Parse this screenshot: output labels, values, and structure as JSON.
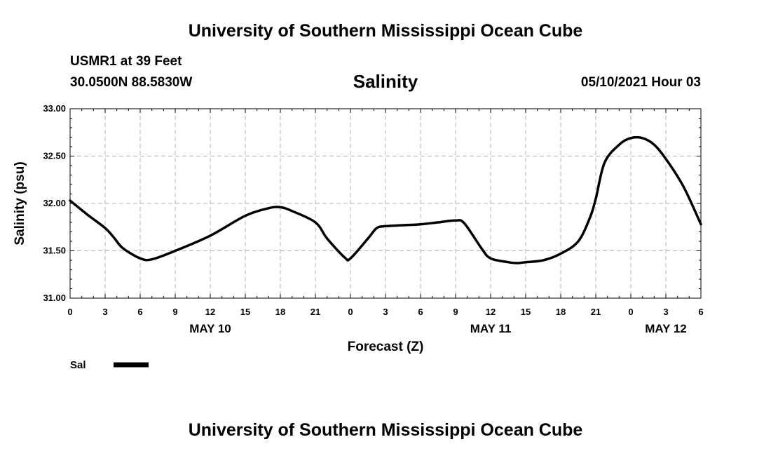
{
  "header": {
    "title": "University of Southern Mississippi Ocean Cube",
    "station": "USMR1 at 39 Feet",
    "coords": "30.0500N  88.5830W",
    "parameter": "Salinity",
    "datetime": "05/10/2021 Hour 03"
  },
  "footer": {
    "title": "University of Southern Mississippi Ocean Cube"
  },
  "legend": {
    "label": "Sal",
    "color": "#000000"
  },
  "chart_data": {
    "type": "line",
    "title": "Salinity",
    "xlabel": "Forecast (Z)",
    "ylabel": "Salinity (psu)",
    "ylim": [
      31.0,
      33.0
    ],
    "xlim": [
      0,
      54
    ],
    "grid": true,
    "y_ticks": [
      "31.00",
      "31.50",
      "32.00",
      "32.50",
      "33.00"
    ],
    "y_tick_values": [
      31.0,
      31.5,
      32.0,
      32.5,
      33.0
    ],
    "x_ticks": [
      "0",
      "3",
      "6",
      "9",
      "12",
      "15",
      "18",
      "21",
      "0",
      "3",
      "6",
      "9",
      "12",
      "15",
      "18",
      "21",
      "0",
      "3",
      "6"
    ],
    "day_labels": [
      {
        "label": "MAY 10",
        "x": 12
      },
      {
        "label": "MAY 11",
        "x": 36
      },
      {
        "label": "MAY 12",
        "x": 51
      }
    ],
    "series": [
      {
        "name": "Sal",
        "x": [
          0,
          1.5,
          3,
          3.75,
          4.5,
          6,
          7,
          9,
          12,
          15,
          17,
          18,
          19,
          21,
          22,
          23.5,
          24,
          25.5,
          26.25,
          27,
          28.5,
          30,
          31.5,
          33,
          33.75,
          35.25,
          36,
          37.5,
          38.25,
          39,
          40.5,
          42,
          43.5,
          44.5,
          45,
          45.75,
          47,
          48,
          49,
          50,
          51,
          52.5,
          54
        ],
        "values": [
          32.03,
          31.88,
          31.74,
          31.64,
          31.53,
          31.42,
          31.41,
          31.5,
          31.66,
          31.87,
          31.95,
          31.96,
          31.92,
          31.8,
          31.63,
          31.43,
          31.42,
          31.63,
          31.74,
          31.76,
          31.77,
          31.78,
          31.8,
          31.82,
          31.79,
          31.52,
          31.42,
          31.38,
          31.37,
          31.38,
          31.4,
          31.47,
          31.6,
          31.85,
          32.05,
          32.43,
          32.62,
          32.69,
          32.69,
          32.62,
          32.47,
          32.18,
          31.78
        ]
      }
    ]
  }
}
